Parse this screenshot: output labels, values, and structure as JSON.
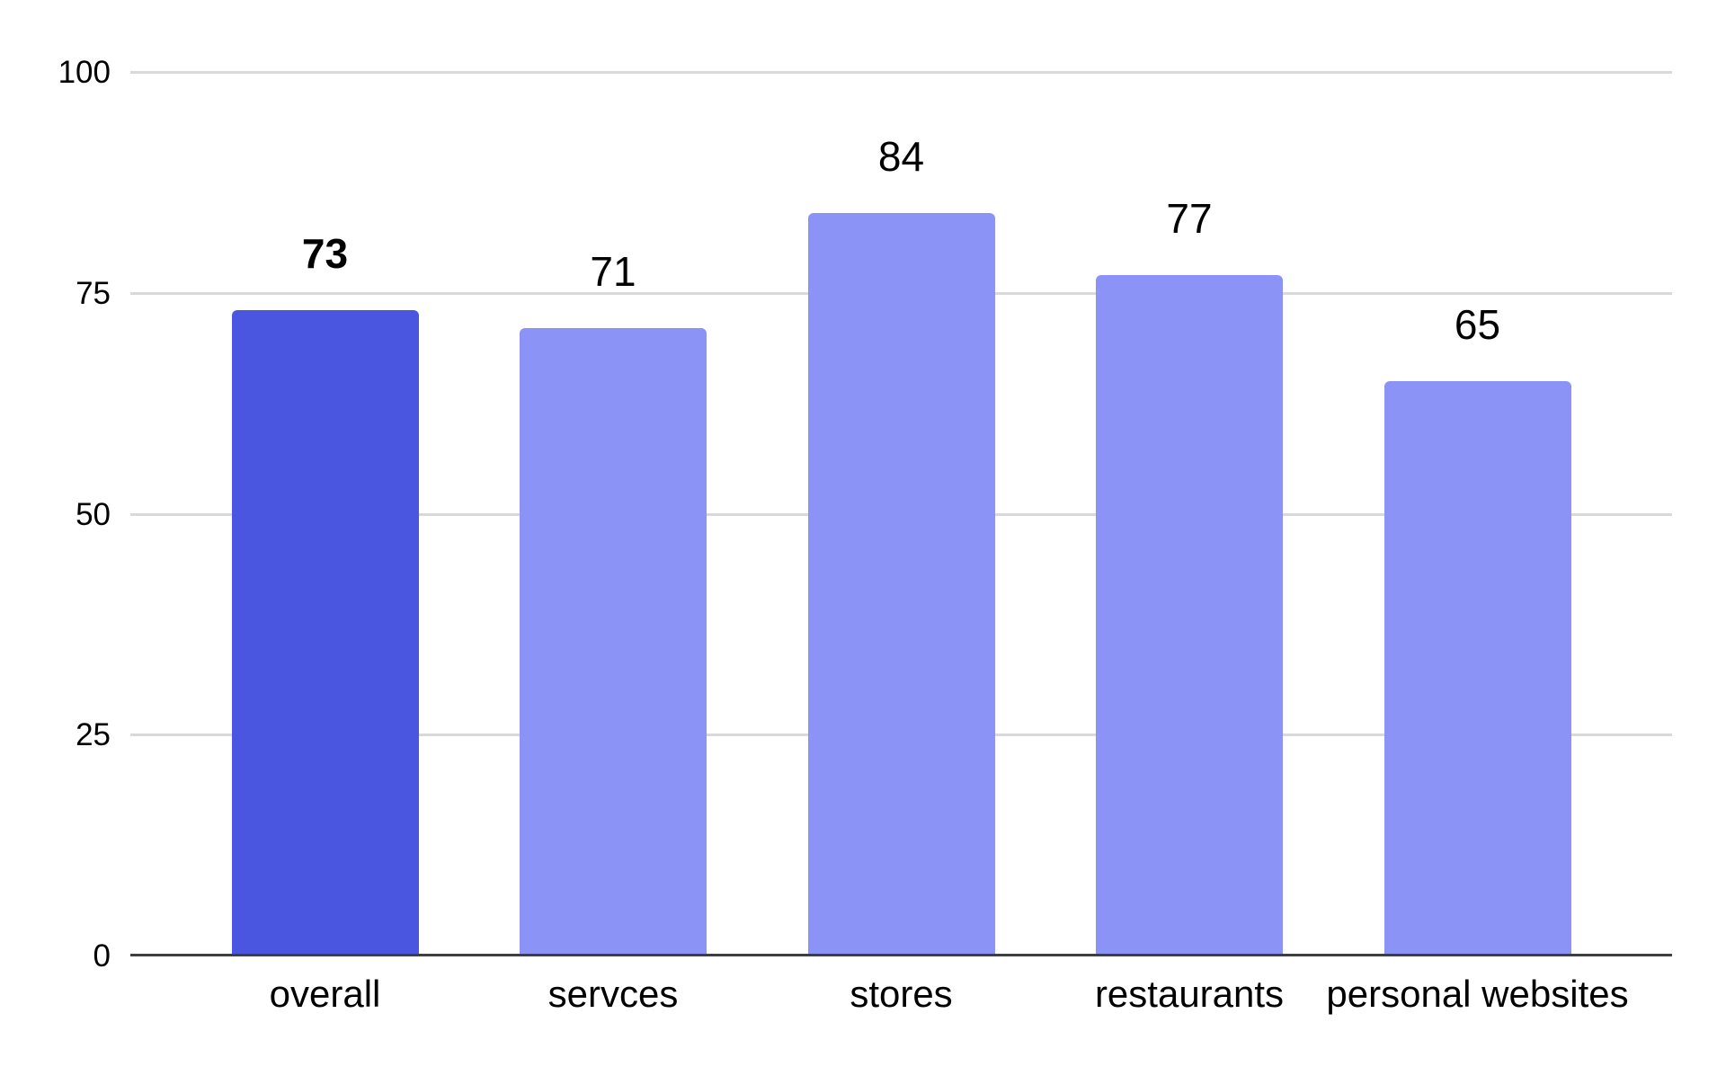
{
  "chart_data": {
    "type": "bar",
    "title": "",
    "categories": [
      "overall",
      "servces",
      "stores",
      "restaurants",
      "personal websites"
    ],
    "values": [
      73,
      71,
      84,
      77,
      65
    ],
    "value_labels": [
      "73",
      "71",
      "84",
      "77",
      "65"
    ],
    "bold_value_label": [
      true,
      false,
      false,
      false,
      false
    ],
    "bar_colors": [
      "#4a55e0",
      "#8b93f7",
      "#8b93f7",
      "#8b93f7",
      "#8b93f7"
    ],
    "xlabel": "",
    "ylabel": "",
    "ylim": [
      0,
      100
    ],
    "y_ticks": [
      0,
      25,
      50,
      75,
      100
    ],
    "y_tick_labels": [
      "0",
      "25",
      "50",
      "75",
      "100"
    ],
    "grid": true,
    "legend_position": "none",
    "colors": {
      "background": "#ffffff",
      "bar_primary": "#4a55e0",
      "bar_secondary": "#8b93f7",
      "gridline": "#d9d9d9",
      "axis_line": "#3c4043",
      "text": "#000000"
    }
  }
}
